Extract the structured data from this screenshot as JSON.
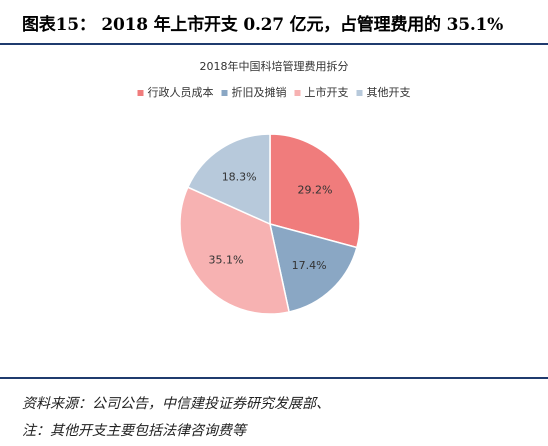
{
  "header": {
    "figure_title": "图表15：  2018 年上市开支 0.27 亿元，占管理费用的 35.1%"
  },
  "chart_data": {
    "type": "pie",
    "title": "2018年中国科培管理费用拆分",
    "categories": [
      "行政人员成本",
      "折旧及摊销",
      "上市开支",
      "其他开支"
    ],
    "values": [
      29.2,
      17.4,
      35.1,
      18.3
    ],
    "value_labels": [
      "29.2%",
      "17.4%",
      "35.1%",
      "18.3%"
    ],
    "colors": [
      "#f07c7c",
      "#8aa7c4",
      "#f7b2b2",
      "#b7c9db"
    ],
    "legend_position": "top"
  },
  "footer": {
    "source": "资料来源：公司公告，中信建投证券研究发展部、",
    "note": "注：其他开支主要包括法律咨询费等"
  }
}
